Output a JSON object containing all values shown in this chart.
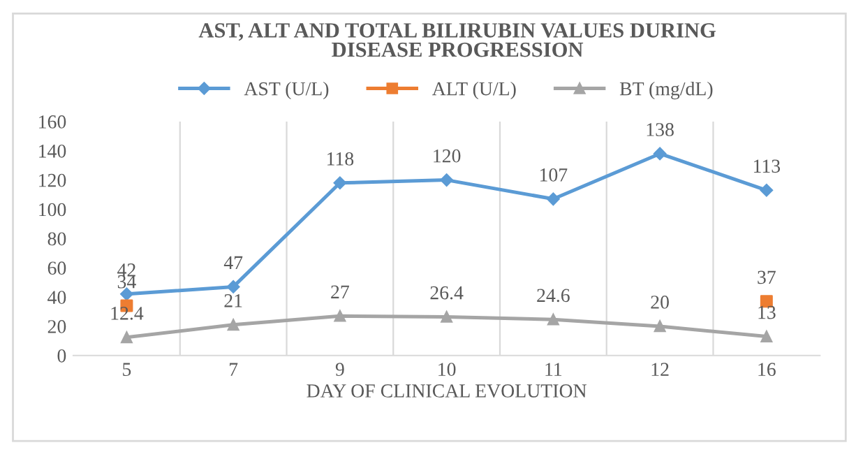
{
  "chart_data": {
    "type": "line",
    "title": "AST, ALT AND TOTAL BILIRUBIN VALUES DURING\nDISEASE PROGRESSION",
    "xlabel": "DAY OF CLINICAL EVOLUTION",
    "categories": [
      "5",
      "7",
      "9",
      "10",
      "11",
      "12",
      "16"
    ],
    "series": [
      {
        "name": "AST (U/L)",
        "color": "#5b9bd5",
        "marker": "diamond",
        "values": [
          42,
          47,
          118,
          120,
          107,
          138,
          113
        ]
      },
      {
        "name": "ALT (U/L)",
        "type": "scatter",
        "color": "#ed7d31",
        "marker": "square",
        "values": [
          34,
          null,
          null,
          null,
          null,
          null,
          37
        ]
      },
      {
        "name": "BT (mg/dL)",
        "color": "#a5a5a5",
        "marker": "triangle",
        "values": [
          12.4,
          21,
          27,
          26.4,
          24.6,
          20,
          13
        ]
      }
    ],
    "ylim": [
      0,
      160
    ],
    "yticks": [
      0,
      20,
      40,
      60,
      80,
      100,
      120,
      140,
      160
    ],
    "grid": "x",
    "legend": "top",
    "data_labels": true
  }
}
